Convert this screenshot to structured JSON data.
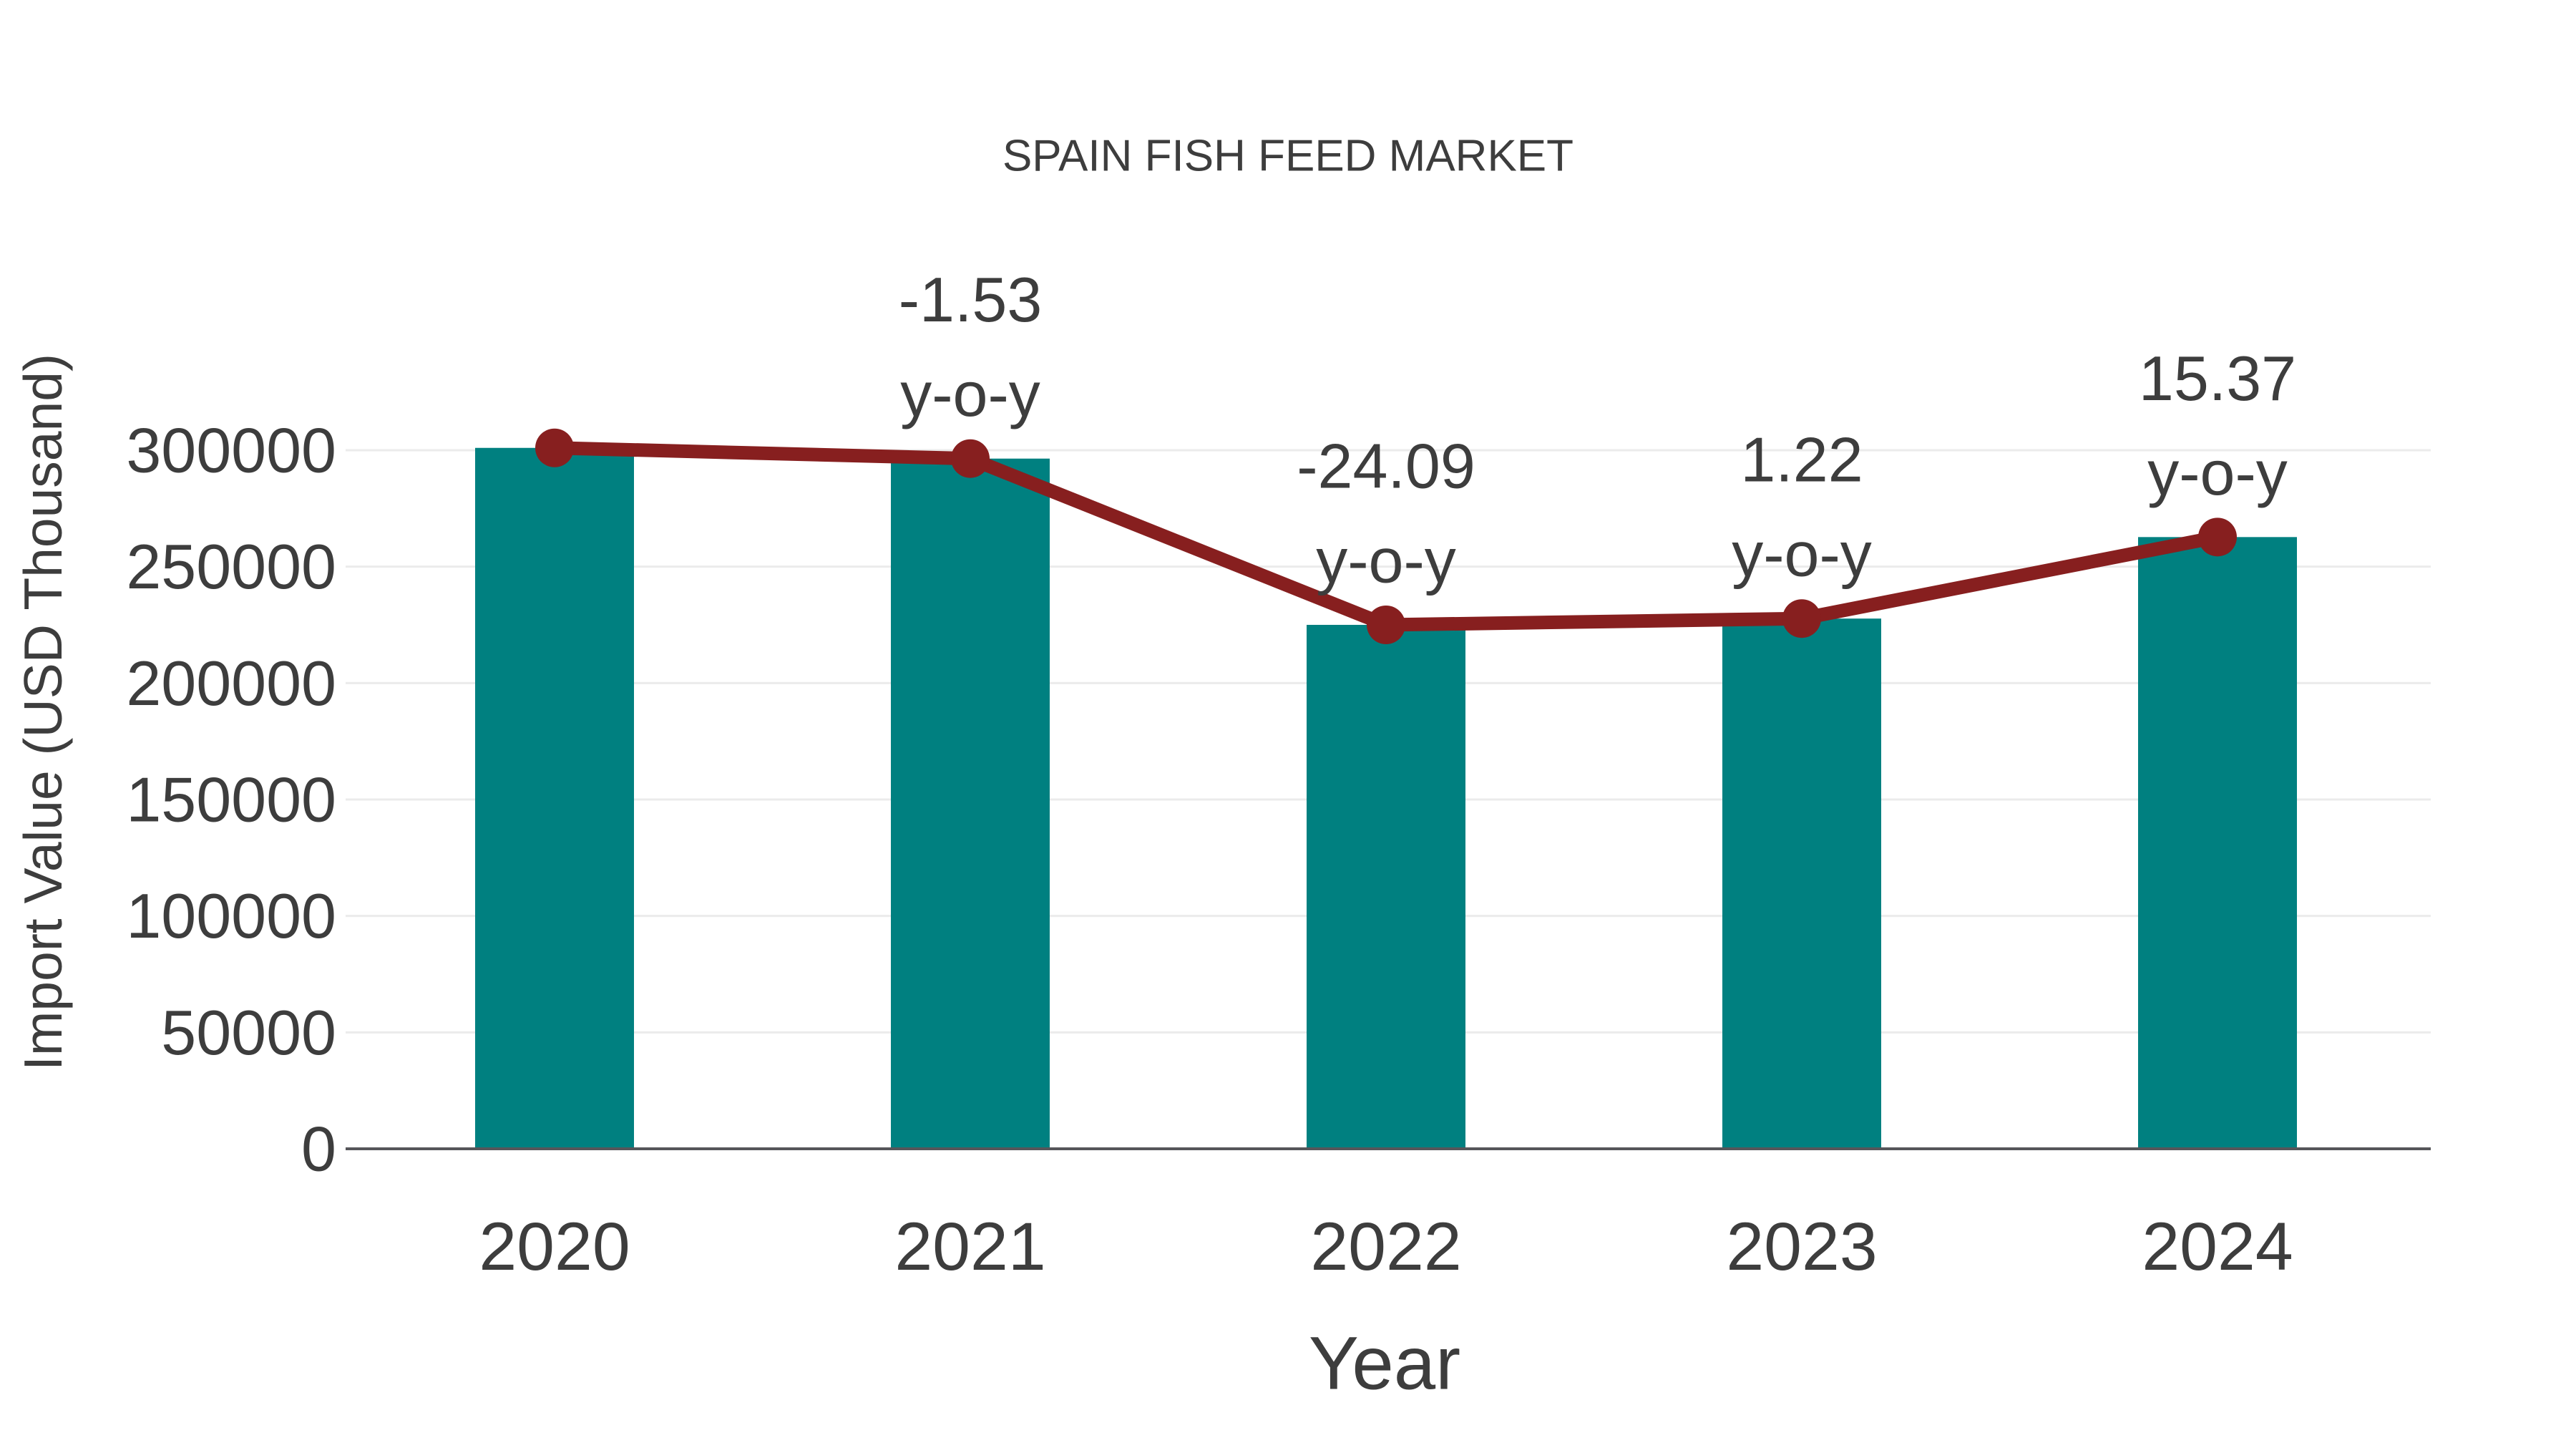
{
  "page": {
    "background": "#ffffff"
  },
  "chart_data": {
    "type": "bar",
    "title": "SPAIN FISH FEED MARKET",
    "xlabel": "Year",
    "ylabel": "Import Value (USD Thousand)",
    "categories": [
      "2020",
      "2021",
      "2022",
      "2023",
      "2024"
    ],
    "series": [
      {
        "name": "Import Value (USD Thousand)",
        "type": "bar",
        "color": "#008080",
        "values": [
          301000,
          296400,
          225000,
          227700,
          262700
        ]
      },
      {
        "name": "y-o-y trend line",
        "type": "line",
        "color": "#871f1f",
        "values": [
          301000,
          296400,
          225000,
          227700,
          262700
        ],
        "point_labels": [
          "",
          "-1.53",
          "-24.09",
          "1.22",
          "15.37"
        ],
        "point_label_suffix": "y-o-y"
      }
    ],
    "ylim": [
      0,
      310000
    ],
    "ytick_step": 50000,
    "yticks": [
      "0",
      "50000",
      "100000",
      "150000",
      "200000",
      "250000",
      "300000"
    ],
    "grid": true,
    "legend_position": "none"
  },
  "colors": {
    "bar": "#008080",
    "line": "#871f1f",
    "marker": "#871f1f",
    "gridline": "#ebebeb",
    "axis_line": "#56565a",
    "text": "#3d3d3d"
  }
}
